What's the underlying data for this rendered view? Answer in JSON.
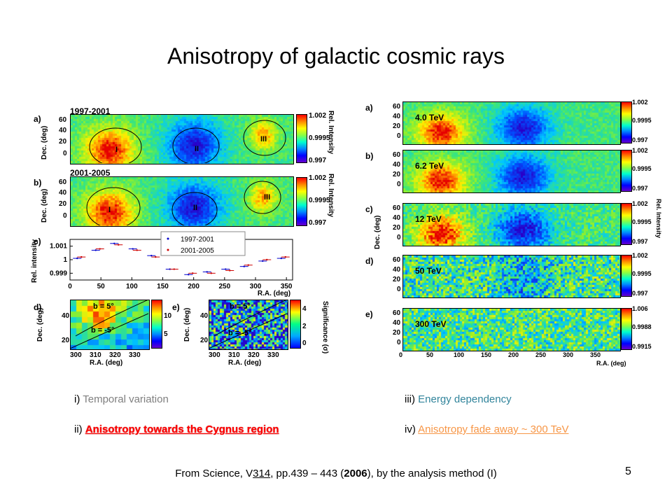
{
  "title": "Anisotropy of galactic cosmic rays",
  "left": {
    "panel_a": {
      "label": "a)",
      "period": "1997-2001",
      "regions": [
        "I",
        "II",
        "III"
      ]
    },
    "panel_b": {
      "label": "b)",
      "period": "2001-2005",
      "regions": [
        "I",
        "II",
        "III"
      ]
    },
    "panel_c": {
      "label": "c)"
    },
    "panel_d": {
      "label": "d)",
      "lines": [
        "b = 5°",
        "b = -5°"
      ]
    },
    "panel_e": {
      "label": "e)",
      "lines": [
        "b = 5°",
        "b = -5°"
      ]
    },
    "dec_label": "Dec. (deg)",
    "rel_intensity_label": "Rel. Intensity",
    "rel_intensity_lower": "Rel. intensity",
    "ra_label": "R.A. (deg)",
    "significance_label": "Significance (σ)",
    "cbar_ticks": [
      "1.002",
      "0.9995",
      "0.997"
    ],
    "dec_ticks": [
      "60",
      "40",
      "20",
      "0"
    ],
    "de_dec_ticks": [
      "40",
      "20"
    ],
    "de_ra_ticks": [
      "300",
      "310",
      "320",
      "330"
    ],
    "d_cbar_ticks": [
      "10",
      "5"
    ],
    "e_cbar_ticks": [
      "4",
      "2",
      "0"
    ]
  },
  "right": {
    "panels": [
      {
        "label": "a)",
        "energy": "4.0 TeV",
        "cbar": [
          "1.002",
          "0.9995",
          "0.997"
        ]
      },
      {
        "label": "b)",
        "energy": "6.2 TeV",
        "cbar": [
          "1.002",
          "0.9995",
          "0.997"
        ]
      },
      {
        "label": "c)",
        "energy": "12 TeV",
        "cbar": [
          "1.002",
          "0.9995",
          "0.997"
        ]
      },
      {
        "label": "d)",
        "energy": "50 TeV",
        "cbar": [
          "1.002",
          "0.9995",
          "0.997"
        ]
      },
      {
        "label": "e)",
        "energy": "300 TeV",
        "cbar": [
          "1.006",
          "0.9988",
          "0.9915"
        ]
      }
    ],
    "dec_label": "Dec. (deg)",
    "rel_intensity_label": "Rel. Intensity",
    "ra_label": "R.A. (deg)",
    "dec_ticks": [
      "60",
      "40",
      "20",
      "0"
    ],
    "ra_ticks": [
      "0",
      "50",
      "100",
      "150",
      "200",
      "250",
      "300",
      "350"
    ]
  },
  "chart_data": {
    "type": "scatter",
    "title": "",
    "xlabel": "R.A. (deg)",
    "ylabel": "Rel. intensity",
    "xlim": [
      0,
      360
    ],
    "ylim": [
      0.9985,
      1.0015
    ],
    "x_ticks": [
      "0",
      "50",
      "100",
      "150",
      "200",
      "250",
      "300",
      "350"
    ],
    "y_ticks": [
      "1.001",
      "1",
      "0.999"
    ],
    "legend_position": "top-right",
    "series": [
      {
        "name": "1997-2001",
        "color": "#0000cc",
        "x": [
          15,
          45,
          75,
          105,
          135,
          165,
          195,
          225,
          255,
          285,
          315,
          345
        ],
        "y": [
          1.0001,
          1.0007,
          1.0012,
          1.0008,
          1.0003,
          0.9993,
          0.9989,
          0.9991,
          0.9993,
          0.9995,
          0.9999,
          1.0001
        ]
      },
      {
        "name": "2001-2005",
        "color": "#cc0000",
        "x": [
          15,
          45,
          75,
          105,
          135,
          165,
          195,
          225,
          255,
          285,
          315,
          345
        ],
        "y": [
          1.0002,
          1.0008,
          1.0011,
          1.0007,
          1.0002,
          0.9993,
          0.999,
          0.999,
          0.9992,
          0.9996,
          1.0,
          1.0002
        ]
      }
    ]
  },
  "captions": {
    "i_prefix": "i)",
    "i_text": "Temporal variation",
    "ii_prefix": "ii)",
    "ii_text": "Anisotropy towards the Cygnus region",
    "iii_prefix": "iii)",
    "iii_text": "Energy dependency",
    "iv_prefix": "iv)",
    "iv_text": "Anisotropy fade away ~ 300 TeV"
  },
  "source": {
    "pre": "From Science, ",
    "vol_v": "V",
    "vol_num": "314",
    "mid": ", pp.439 – 443 (",
    "year": "2006",
    "post": "),  by the analysis method (I)"
  },
  "page_number": "5"
}
